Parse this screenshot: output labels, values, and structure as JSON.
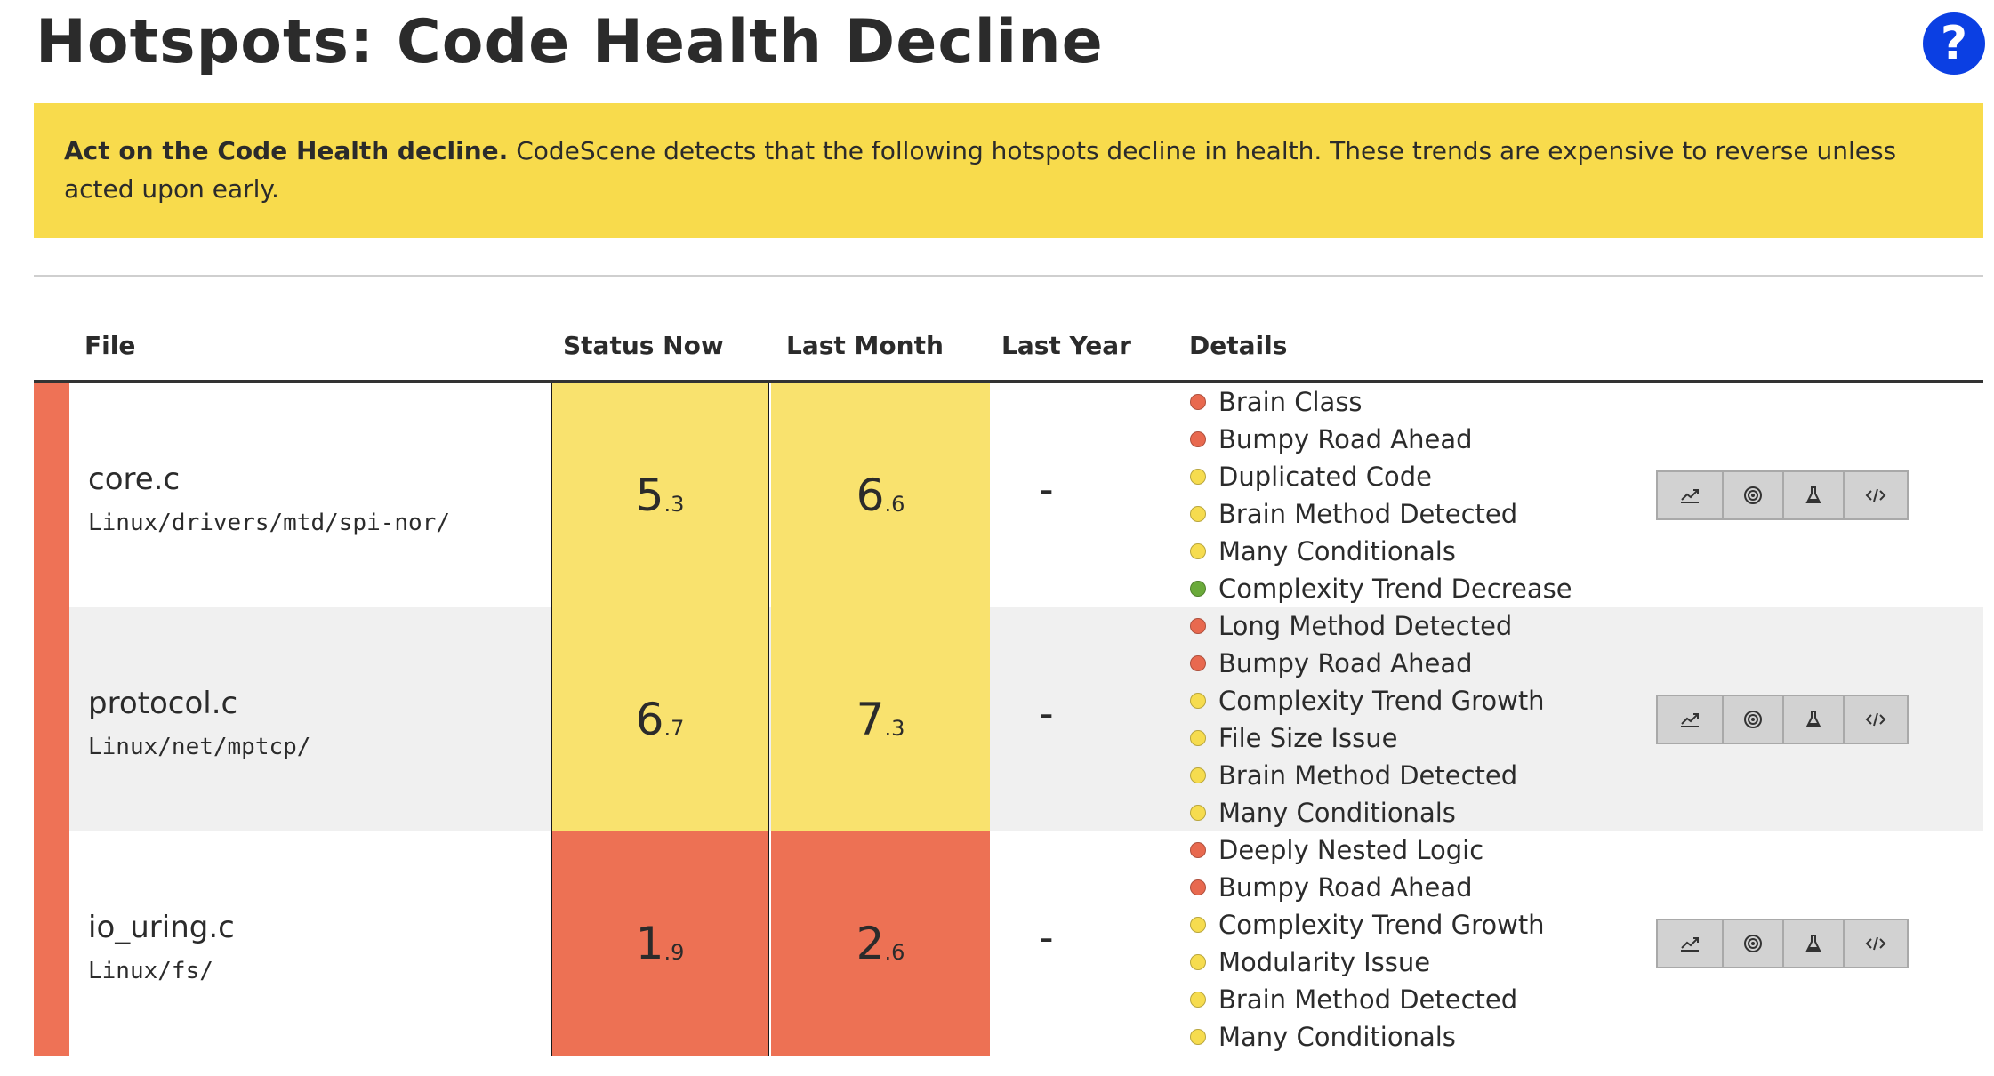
{
  "page": {
    "title": "Hotspots: Code Health Decline",
    "help_label": "?"
  },
  "banner": {
    "bold": "Act on the Code Health decline.",
    "text": " CodeScene detects that the following hotspots decline in health. These trends are expensive to reverse unless acted upon early."
  },
  "table": {
    "headers": {
      "file": "File",
      "status_now": "Status Now",
      "last_month": "Last Month",
      "last_year": "Last Year",
      "details": "Details"
    },
    "rows": [
      {
        "file": "core.c",
        "path": "Linux/drivers/mtd/spi-nor/",
        "status_now": {
          "int": "5",
          "dec": ".3",
          "color": "#f9e26e"
        },
        "last_month": {
          "int": "6",
          "dec": ".6",
          "color": "#f9e26e"
        },
        "last_year": "-",
        "details": [
          {
            "label": "Brain Class",
            "severity": "red"
          },
          {
            "label": "Bumpy Road Ahead",
            "severity": "red"
          },
          {
            "label": "Duplicated Code",
            "severity": "yellow"
          },
          {
            "label": "Brain Method Detected",
            "severity": "yellow"
          },
          {
            "label": "Many Conditionals",
            "severity": "yellow"
          },
          {
            "label": "Complexity Trend Decrease",
            "severity": "green"
          }
        ]
      },
      {
        "file": "protocol.c",
        "path": "Linux/net/mptcp/",
        "status_now": {
          "int": "6",
          "dec": ".7",
          "color": "#f9e26e"
        },
        "last_month": {
          "int": "7",
          "dec": ".3",
          "color": "#f9e26e"
        },
        "last_year": "-",
        "details": [
          {
            "label": "Long Method Detected",
            "severity": "red"
          },
          {
            "label": "Bumpy Road Ahead",
            "severity": "red"
          },
          {
            "label": "Complexity Trend Growth",
            "severity": "yellow"
          },
          {
            "label": "File Size Issue",
            "severity": "yellow"
          },
          {
            "label": "Brain Method Detected",
            "severity": "yellow"
          },
          {
            "label": "Many Conditionals",
            "severity": "yellow"
          }
        ]
      },
      {
        "file": "io_uring.c",
        "path": "Linux/fs/",
        "status_now": {
          "int": "1",
          "dec": ".9",
          "color": "#ed7154"
        },
        "last_month": {
          "int": "2",
          "dec": ".6",
          "color": "#ed7154"
        },
        "last_year": "-",
        "details": [
          {
            "label": "Deeply Nested Logic",
            "severity": "red"
          },
          {
            "label": "Bumpy Road Ahead",
            "severity": "red"
          },
          {
            "label": "Complexity Trend Growth",
            "severity": "yellow"
          },
          {
            "label": "Modularity Issue",
            "severity": "yellow"
          },
          {
            "label": "Brain Method Detected",
            "severity": "yellow"
          },
          {
            "label": "Many Conditionals",
            "severity": "yellow"
          }
        ]
      }
    ]
  },
  "row_actions": [
    {
      "name": "trend-chart-button",
      "icon": "trend-chart-icon"
    },
    {
      "name": "target-button",
      "icon": "target-icon"
    },
    {
      "name": "flask-button",
      "icon": "flask-icon"
    },
    {
      "name": "code-button",
      "icon": "code-icon"
    }
  ],
  "colors": {
    "banner": "#f8db4c",
    "stripe": "#ee7256",
    "help": "#0b3fe3",
    "severity": {
      "red": "#e8694f",
      "yellow": "#f6dc4f",
      "green": "#6aaa3a"
    }
  }
}
